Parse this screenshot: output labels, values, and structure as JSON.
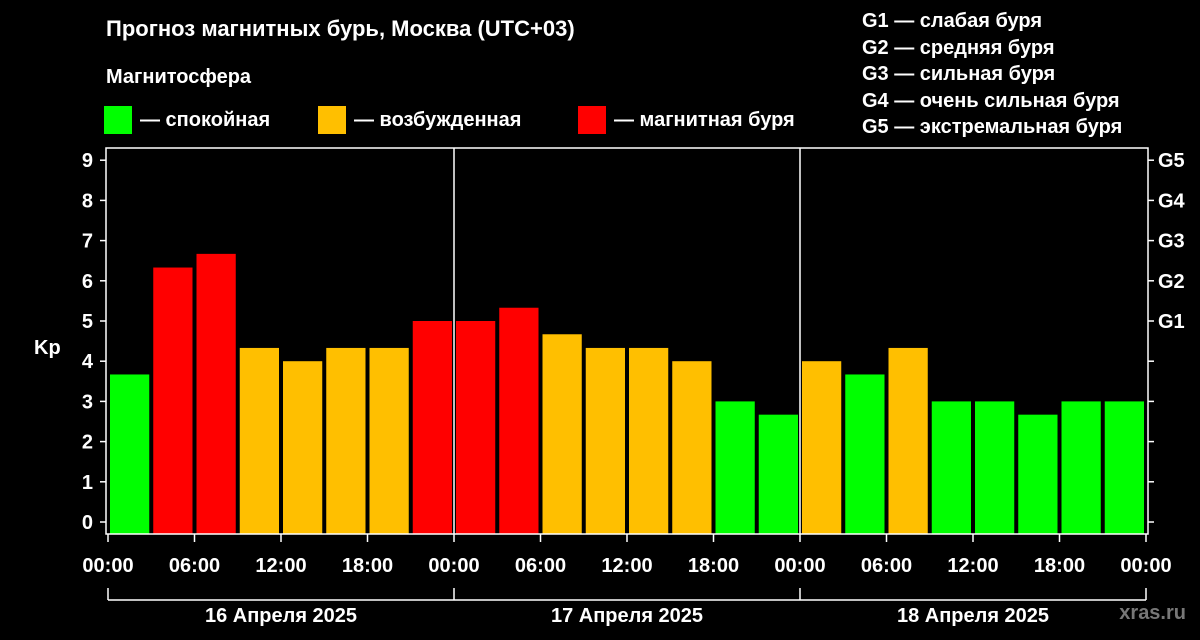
{
  "title": "Прогноз магнитных бурь, Москва (UTC+03)",
  "subtitle": "Магнитосфера",
  "legend": [
    {
      "label": "— спокойная",
      "color": "#00ff00"
    },
    {
      "label": "— возбужденная",
      "color": "#ffbf00"
    },
    {
      "label": "— магнитная буря",
      "color": "#ff0000"
    }
  ],
  "g_scale": [
    "G1 — слабая буря",
    "G2 — средняя буря",
    "G3 — сильная буря",
    "G4 — очень сильная буря",
    "G5 — экстремальная буря"
  ],
  "watermark": "xras.ru",
  "chart_data": {
    "type": "bar",
    "ylabel": "Kp",
    "ylim": [
      0,
      9
    ],
    "y_ticks": [
      "0",
      "1",
      "2",
      "3",
      "4",
      "5",
      "6",
      "7",
      "8",
      "9"
    ],
    "right_ticks": [
      {
        "label": "G1",
        "value": 5
      },
      {
        "label": "G2",
        "value": 6
      },
      {
        "label": "G3",
        "value": 7
      },
      {
        "label": "G4",
        "value": 8
      },
      {
        "label": "G5",
        "value": 9
      }
    ],
    "x_tick_labels": [
      "00:00",
      "06:00",
      "12:00",
      "18:00",
      "00:00",
      "06:00",
      "12:00",
      "18:00",
      "00:00",
      "06:00",
      "12:00",
      "18:00",
      "00:00"
    ],
    "days": [
      "16 Апреля 2025",
      "17 Апреля 2025",
      "18 Апреля 2025"
    ],
    "interval_hours": 3,
    "values": [
      3.67,
      6.33,
      6.67,
      4.33,
      4.0,
      4.33,
      4.33,
      5.0,
      5.0,
      5.33,
      4.67,
      4.33,
      4.33,
      4.0,
      3.0,
      2.67,
      4.0,
      3.67,
      4.33,
      3.0,
      3.0,
      2.67,
      3.0,
      3.0
    ],
    "colors": {
      "quiet": "#00ff00",
      "unsettled": "#ffbf00",
      "storm": "#ff0000"
    },
    "categories": [
      "quiet",
      "storm",
      "storm",
      "unsettled",
      "unsettled",
      "unsettled",
      "unsettled",
      "storm",
      "storm",
      "storm",
      "unsettled",
      "unsettled",
      "unsettled",
      "unsettled",
      "quiet",
      "quiet",
      "unsettled",
      "quiet",
      "unsettled",
      "quiet",
      "quiet",
      "quiet",
      "quiet",
      "quiet"
    ]
  }
}
